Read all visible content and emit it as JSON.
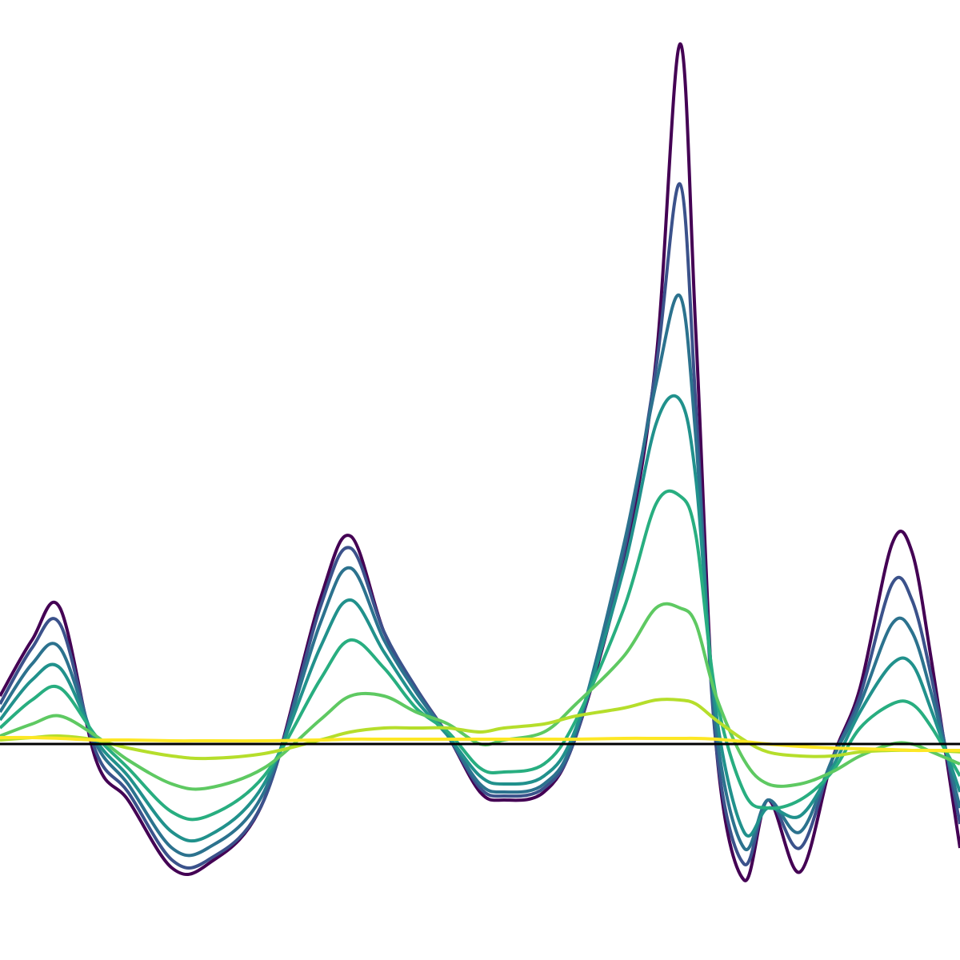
{
  "chart_data": {
    "type": "line",
    "x": [
      0,
      40,
      75,
      120,
      160,
      215,
      260,
      330,
      400,
      438,
      480,
      520,
      560,
      600,
      630,
      680,
      720,
      780,
      820,
      850,
      870,
      895,
      930,
      960,
      1000,
      1040,
      1075,
      1115,
      1140,
      1165,
      1200
    ],
    "xlim": [
      0,
      1200
    ],
    "ylim": [
      -270,
      930
    ],
    "baseline": 0,
    "series": [
      {
        "color": "#440154",
        "values": [
          60,
          130,
          170,
          -20,
          -70,
          -155,
          -150,
          -70,
          180,
          260,
          140,
          70,
          10,
          -60,
          -70,
          -60,
          10,
          230,
          480,
          875,
          510,
          0,
          -170,
          -70,
          -160,
          -20,
          70,
          250,
          240,
          100,
          -130
        ]
      },
      {
        "color": "#3b528b",
        "values": [
          50,
          120,
          150,
          -10,
          -60,
          -145,
          -145,
          -70,
          170,
          245,
          140,
          70,
          10,
          -55,
          -65,
          -55,
          10,
          240,
          470,
          700,
          420,
          0,
          -150,
          -70,
          -130,
          -20,
          60,
          200,
          180,
          80,
          -100
        ]
      },
      {
        "color": "#2c728e",
        "values": [
          40,
          100,
          120,
          0,
          -50,
          -130,
          -130,
          -60,
          150,
          220,
          130,
          65,
          10,
          -50,
          -60,
          -50,
          15,
          250,
          450,
          560,
          380,
          20,
          -130,
          -70,
          -110,
          -20,
          50,
          150,
          140,
          60,
          -80
        ]
      },
      {
        "color": "#21918c",
        "values": [
          30,
          80,
          95,
          5,
          -40,
          -110,
          -115,
          -50,
          120,
          180,
          115,
          55,
          10,
          -40,
          -50,
          -40,
          20,
          220,
          400,
          430,
          330,
          40,
          -110,
          -80,
          -90,
          -30,
          40,
          100,
          100,
          40,
          -60
        ]
      },
      {
        "color": "#28ae80",
        "values": [
          20,
          55,
          70,
          10,
          -30,
          -85,
          -90,
          -40,
          80,
          130,
          95,
          45,
          15,
          -30,
          -35,
          -25,
          30,
          170,
          300,
          310,
          260,
          60,
          -60,
          -80,
          -70,
          -35,
          20,
          50,
          50,
          20,
          -40
        ]
      },
      {
        "color": "#5ec962",
        "values": [
          10,
          25,
          35,
          10,
          -20,
          -50,
          -55,
          -30,
          30,
          60,
          60,
          40,
          25,
          0,
          5,
          15,
          50,
          110,
          170,
          170,
          150,
          60,
          -20,
          -50,
          -50,
          -35,
          -15,
          0,
          0,
          -10,
          -25
        ]
      },
      {
        "color": "#b5de2b",
        "values": [
          5,
          8,
          10,
          5,
          -5,
          -15,
          -18,
          -12,
          5,
          15,
          20,
          20,
          20,
          15,
          20,
          25,
          35,
          45,
          55,
          55,
          50,
          30,
          5,
          -10,
          -15,
          -15,
          -10,
          -8,
          -8,
          -8,
          -10
        ]
      },
      {
        "color": "#fde725",
        "values": [
          8,
          8,
          7,
          5,
          5,
          4,
          4,
          4,
          5,
          6,
          6,
          6,
          6,
          6,
          6,
          6,
          6,
          7,
          7,
          7,
          7,
          6,
          3,
          0,
          -3,
          -5,
          -6,
          -7,
          -8,
          -8,
          -8
        ]
      }
    ]
  }
}
